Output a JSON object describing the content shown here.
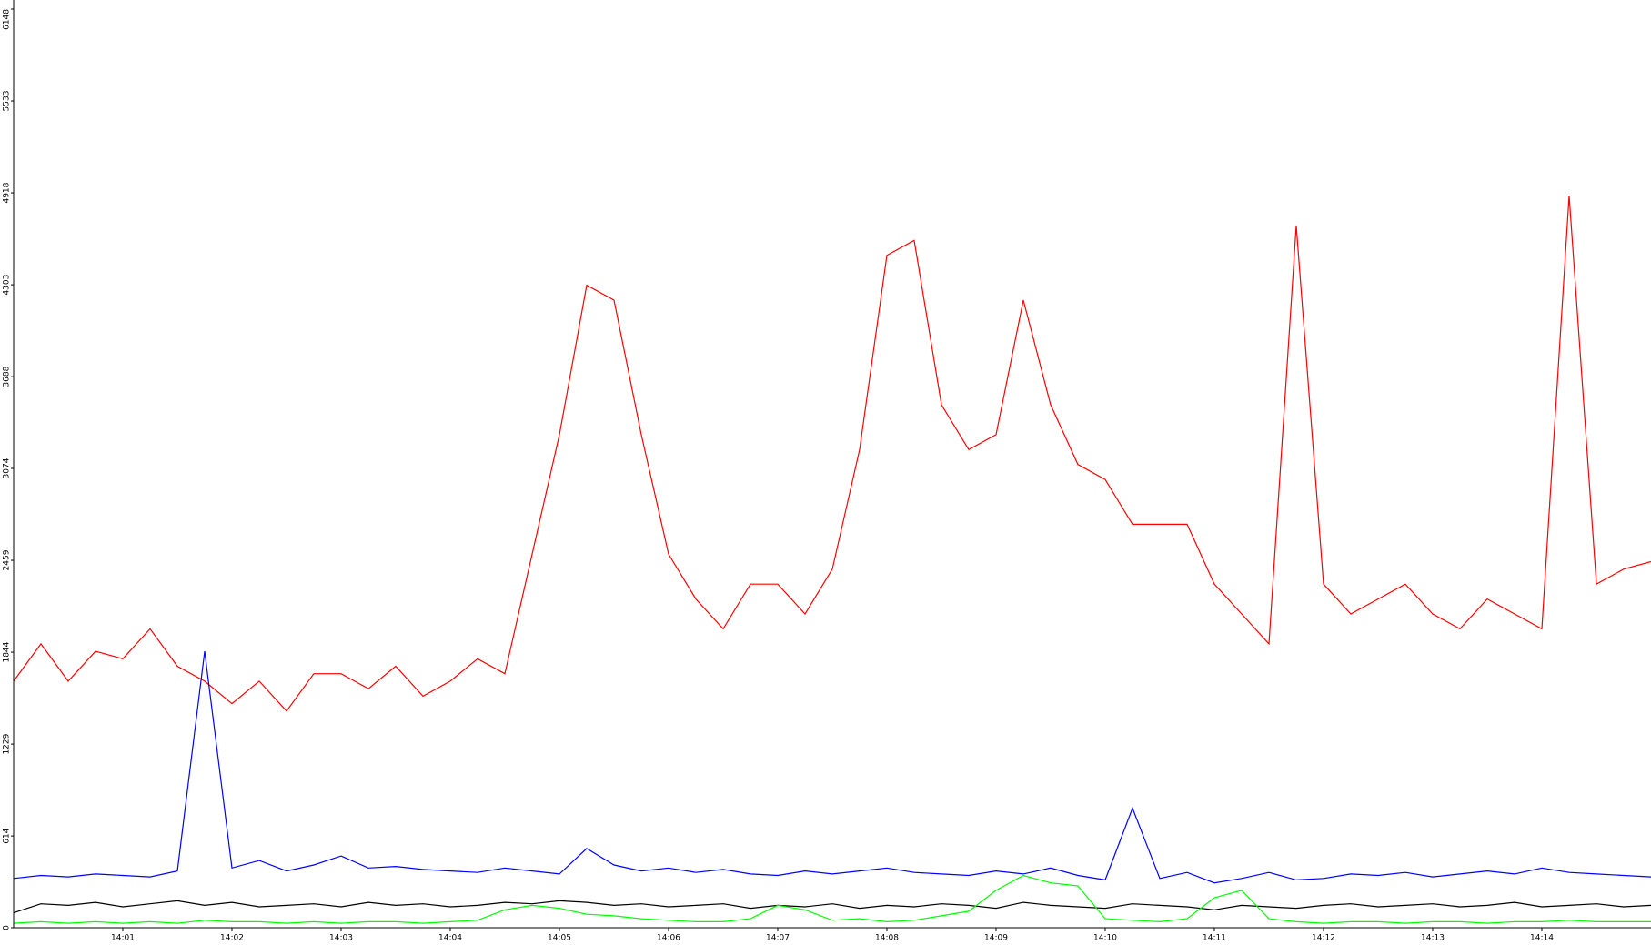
{
  "chart_data": {
    "type": "line",
    "x": [
      840,
      840.25,
      840.5,
      840.75,
      841,
      841.25,
      841.5,
      841.75,
      842,
      842.25,
      842.5,
      842.75,
      843,
      843.25,
      843.5,
      843.75,
      844,
      844.25,
      844.5,
      844.75,
      845,
      845.25,
      845.5,
      845.75,
      846,
      846.25,
      846.5,
      846.75,
      847,
      847.25,
      847.5,
      847.75,
      848,
      848.25,
      848.5,
      848.75,
      849,
      849.25,
      849.5,
      849.75,
      850,
      850.25,
      850.5,
      850.75,
      851,
      851.25,
      851.5,
      851.75,
      852,
      852.25,
      852.5,
      852.75,
      853,
      853.25,
      853.5,
      853.75,
      854,
      854.25,
      854.5,
      854.75,
      855
    ],
    "series": [
      {
        "color": "#ff0000",
        "values": [
          1650,
          1900,
          1650,
          1850,
          1800,
          2000,
          1750,
          1650,
          1500,
          1650,
          1450,
          1700,
          1700,
          1600,
          1750,
          1550,
          1650,
          1800,
          1700,
          2500,
          3300,
          4300,
          4200,
          3300,
          2500,
          2200,
          2000,
          2300,
          2300,
          2100,
          2400,
          3200,
          4500,
          4600,
          3500,
          3200,
          3300,
          4200,
          3500,
          3100,
          3000,
          2700,
          2700,
          2700,
          2300,
          2100,
          1900,
          4700,
          2300,
          2100,
          2200,
          2300,
          2100,
          2000,
          2200,
          2100,
          2000,
          4900,
          2300,
          2400,
          2450
        ]
      },
      {
        "color": "#0000ff",
        "values": [
          330,
          350,
          340,
          360,
          350,
          340,
          380,
          1850,
          400,
          450,
          380,
          420,
          480,
          400,
          410,
          390,
          380,
          370,
          400,
          380,
          360,
          530,
          420,
          380,
          400,
          370,
          390,
          360,
          350,
          380,
          360,
          380,
          400,
          370,
          360,
          350,
          380,
          360,
          400,
          350,
          320,
          800,
          330,
          370,
          300,
          330,
          370,
          320,
          330,
          360,
          350,
          370,
          340,
          360,
          380,
          360,
          400,
          370,
          360,
          350,
          340
        ]
      },
      {
        "color": "#000000",
        "values": [
          100,
          160,
          150,
          170,
          140,
          160,
          180,
          150,
          170,
          140,
          150,
          160,
          140,
          170,
          150,
          160,
          140,
          150,
          170,
          160,
          180,
          170,
          150,
          160,
          140,
          150,
          160,
          130,
          150,
          140,
          160,
          130,
          150,
          140,
          160,
          150,
          130,
          170,
          150,
          140,
          130,
          160,
          150,
          140,
          120,
          150,
          140,
          130,
          150,
          160,
          140,
          150,
          160,
          140,
          150,
          170,
          140,
          150,
          160,
          140,
          150
        ]
      },
      {
        "color": "#00ff00",
        "values": [
          30,
          40,
          30,
          40,
          30,
          40,
          30,
          50,
          40,
          40,
          30,
          40,
          30,
          40,
          40,
          30,
          40,
          50,
          120,
          150,
          130,
          90,
          80,
          60,
          50,
          40,
          40,
          60,
          150,
          120,
          50,
          60,
          40,
          50,
          80,
          110,
          250,
          350,
          300,
          280,
          60,
          50,
          40,
          60,
          200,
          250,
          60,
          40,
          30,
          40,
          40,
          30,
          40,
          40,
          30,
          40,
          40,
          50,
          40,
          40,
          40
        ]
      }
    ],
    "xlim": [
      840,
      855
    ],
    "xticks": [
      {
        "value": 841,
        "label": "14:01"
      },
      {
        "value": 842,
        "label": "14:02"
      },
      {
        "value": 843,
        "label": "14:03"
      },
      {
        "value": 844,
        "label": "14:04"
      },
      {
        "value": 845,
        "label": "14:05"
      },
      {
        "value": 846,
        "label": "14:06"
      },
      {
        "value": 847,
        "label": "14:07"
      },
      {
        "value": 848,
        "label": "14:08"
      },
      {
        "value": 849,
        "label": "14:09"
      },
      {
        "value": 850,
        "label": "14:10"
      },
      {
        "value": 851,
        "label": "14:11"
      },
      {
        "value": 852,
        "label": "14:12"
      },
      {
        "value": 853,
        "label": "14:13"
      },
      {
        "value": 854,
        "label": "14:14"
      }
    ],
    "ylim": [
      0,
      6148
    ],
    "yticks": [
      0,
      614,
      1229,
      1844,
      2459,
      3074,
      3688,
      4303,
      4918,
      5533,
      6148
    ]
  }
}
